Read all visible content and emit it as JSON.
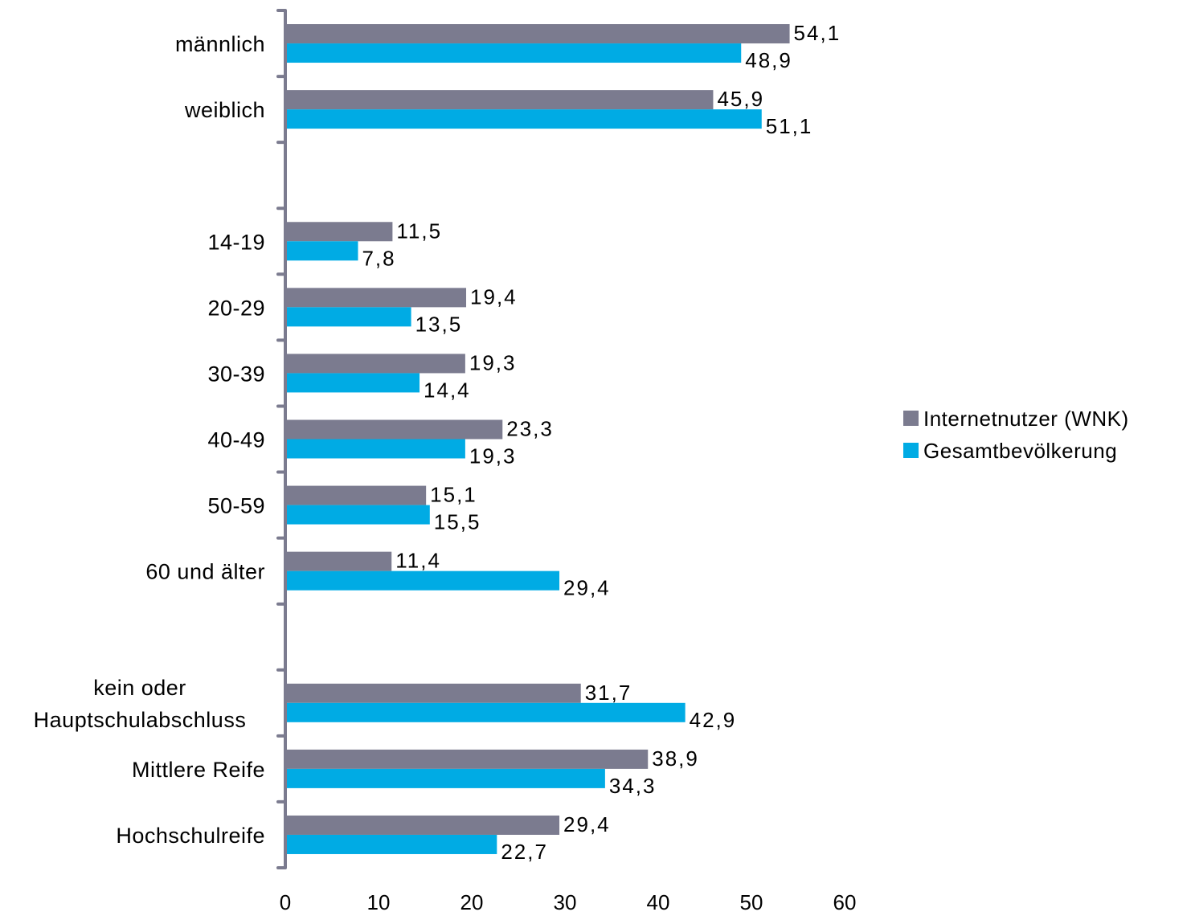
{
  "chart_data": {
    "type": "bar",
    "orientation": "horizontal",
    "categories": [
      "männlich",
      "weiblich",
      "",
      "14-19",
      "20-29",
      "30-39",
      "40-49",
      "50-59",
      "60 und älter",
      "",
      "kein oder Hauptschulabschluss",
      "Mittlere Reife",
      "Hochschulreife"
    ],
    "series": [
      {
        "name": "Internetnutzer (WNK)",
        "color": "#7b7b8f",
        "values": [
          54.1,
          45.9,
          null,
          11.5,
          19.4,
          19.3,
          23.3,
          15.1,
          11.4,
          null,
          31.7,
          38.9,
          29.4
        ],
        "labels": [
          "54,1",
          "45,9",
          "",
          "11,5",
          "19,4",
          "19,3",
          "23,3",
          "15,1",
          "11,4",
          "",
          "31,7",
          "38,9",
          "29,4"
        ]
      },
      {
        "name": "Gesamtbevölkerung",
        "color": "#00abe4",
        "values": [
          48.9,
          51.1,
          null,
          7.8,
          13.5,
          14.4,
          19.3,
          15.5,
          29.4,
          null,
          42.9,
          34.3,
          22.7
        ],
        "labels": [
          "48,9",
          "51,1",
          "",
          "7,8",
          "13,5",
          "14,4",
          "19,3",
          "15,5",
          "29,4",
          "",
          "42,9",
          "34,3",
          "22,7"
        ]
      }
    ],
    "xlim": [
      0,
      60
    ],
    "xticks": [
      "0",
      "10",
      "20",
      "30",
      "40",
      "50",
      "60"
    ],
    "title": "",
    "xlabel": "",
    "ylabel": "",
    "axis_color": "#7b7b8f",
    "grid": false,
    "legend": "right"
  }
}
